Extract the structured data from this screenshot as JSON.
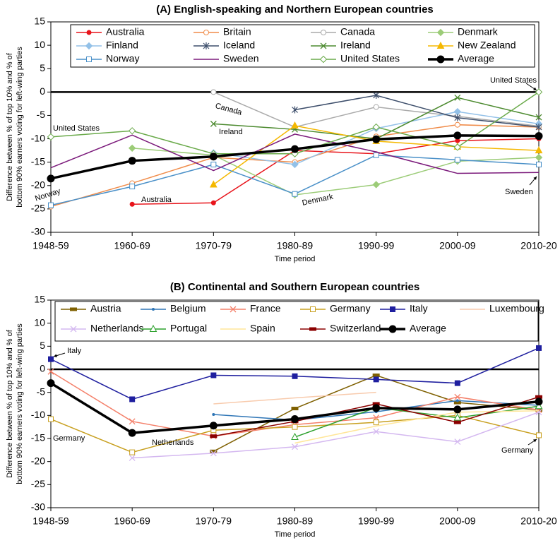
{
  "chart_data": [
    {
      "type": "line",
      "title": "(A)  English-speaking and Northern European countries",
      "xlabel": "Time period",
      "ylabel": [
        "Difference between % of top 10% and % of",
        "bottom 90% earners voting for left-wing parties"
      ],
      "categories": [
        "1948-59",
        "1960-69",
        "1970-79",
        "1980-89",
        "1990-99",
        "2000-09",
        "2010-20"
      ],
      "ylim": [
        -30,
        15
      ],
      "yticks": [
        -30,
        -25,
        -20,
        -15,
        -10,
        -5,
        0,
        5,
        10,
        15
      ],
      "legend": "top",
      "series": [
        {
          "name": "Australia",
          "color": "#e8141b",
          "marker": "circle",
          "values": [
            null,
            -24,
            -23.7,
            -12.5,
            -13.2,
            -10.4,
            -10
          ]
        },
        {
          "name": "Britain",
          "color": "#f08c4a",
          "marker": "circle-open",
          "values": [
            -24.5,
            -19.5,
            -14,
            -15,
            -9.5,
            -7,
            -7.5
          ]
        },
        {
          "name": "Canada",
          "color": "#aaaaaa",
          "marker": "circle-open",
          "values": [
            null,
            null,
            0,
            -7.5,
            -3.2,
            -5.2,
            -7.3
          ]
        },
        {
          "name": "Denmark",
          "color": "#9ccc78",
          "marker": "diamond",
          "values": [
            null,
            -12,
            -13.5,
            -22,
            -19.8,
            -14.8,
            -14
          ]
        },
        {
          "name": "Finland",
          "color": "#93c1e8",
          "marker": "diamond",
          "values": [
            null,
            null,
            -13,
            -15.5,
            -7.8,
            -4.2,
            -6.8
          ]
        },
        {
          "name": "Iceland",
          "color": "#3d4e6b",
          "marker": "star",
          "values": [
            null,
            null,
            null,
            -3.8,
            -0.7,
            -5.5,
            -7.5
          ]
        },
        {
          "name": "Ireland",
          "color": "#4c8a2f",
          "marker": "x",
          "values": [
            null,
            null,
            -6.8,
            -8,
            -10,
            -1.2,
            -5.4
          ]
        },
        {
          "name": "New Zealand",
          "color": "#f5b800",
          "marker": "triangle",
          "values": [
            null,
            null,
            -19.8,
            -7.2,
            -10.5,
            -11.7,
            -12.5
          ]
        },
        {
          "name": "Norway",
          "color": "#4a90c8",
          "marker": "square-open",
          "values": [
            -24.2,
            -20.2,
            -15.5,
            -21.8,
            -13.5,
            -14.5,
            -15.5
          ]
        },
        {
          "name": "Sweden",
          "color": "#7b1a7b",
          "marker": "none",
          "values": [
            -16.2,
            -9.2,
            -16.8,
            -9,
            -12.8,
            -17.4,
            -17.2
          ]
        },
        {
          "name": "United States",
          "color": "#6aaa4a",
          "marker": "diamond-open",
          "values": [
            -9.6,
            -8.3,
            -13.2,
            -13.2,
            -7.5,
            -11.8,
            0
          ]
        },
        {
          "name": "Average",
          "color": "#000000",
          "marker": "circle-big",
          "values": [
            -18.5,
            -14.7,
            -13.8,
            -12.2,
            -10.1,
            -9.3,
            -9.4
          ]
        }
      ],
      "annotations": [
        "United States",
        "Canada",
        "Ireland",
        "United States",
        "Norway",
        "Australia",
        "Denmark",
        "Sweden"
      ]
    },
    {
      "type": "line",
      "title": "(B)  Continental and Southern European countries",
      "xlabel": "Time period",
      "ylabel": [
        "Difference between % of top 10% and % of",
        "bottom 90% earners voting for left-wing parties"
      ],
      "categories": [
        "1948-59",
        "1960-69",
        "1970-79",
        "1980-89",
        "1990-99",
        "2000-09",
        "2010-20"
      ],
      "ylim": [
        -30,
        15
      ],
      "yticks": [
        -30,
        -25,
        -20,
        -15,
        -10,
        -5,
        0,
        5,
        10,
        15
      ],
      "legend": "top",
      "series": [
        {
          "name": "Austria",
          "color": "#7f6000",
          "marker": "dash",
          "values": [
            null,
            null,
            -17.8,
            -8.5,
            -1.3,
            -7.2,
            -8.8
          ]
        },
        {
          "name": "Belgium",
          "color": "#2e75b6",
          "marker": "dot",
          "values": [
            null,
            null,
            -9.8,
            -11,
            -9.2,
            -6.8,
            -7.8
          ]
        },
        {
          "name": "France",
          "color": "#f4806a",
          "marker": "x",
          "values": [
            -0.5,
            -11.3,
            -14.5,
            -12,
            -10.5,
            -6,
            -8.8
          ]
        },
        {
          "name": "Germany",
          "color": "#c8a020",
          "marker": "square-open",
          "values": [
            -10.8,
            -18,
            -13.2,
            -12.5,
            -11.5,
            -10,
            -14.3
          ]
        },
        {
          "name": "Italy",
          "color": "#1f1f9f",
          "marker": "square",
          "values": [
            2.2,
            -6.5,
            -1.3,
            -1.5,
            -2.2,
            -3,
            4.6
          ]
        },
        {
          "name": "Luxembourg",
          "color": "#f8cbad",
          "marker": "none",
          "values": [
            null,
            null,
            -7.5,
            -6.2,
            -5,
            null,
            null
          ]
        },
        {
          "name": "Netherlands",
          "color": "#d4b8f0",
          "marker": "x",
          "values": [
            null,
            -19.2,
            -18.2,
            -16.8,
            -13.5,
            -15.7,
            -9.3
          ]
        },
        {
          "name": "Portugal",
          "color": "#2ca02c",
          "marker": "triangle-open",
          "values": [
            null,
            null,
            null,
            -14.7,
            -8.3,
            -10.5,
            -8
          ]
        },
        {
          "name": "Spain",
          "color": "#ffe699",
          "marker": "none",
          "values": [
            null,
            null,
            null,
            -16,
            -12.3,
            -9.3,
            -9
          ]
        },
        {
          "name": "Switzerland",
          "color": "#8b0000",
          "marker": "dash",
          "values": [
            null,
            null,
            -14.5,
            -11.3,
            -7.5,
            -11.5,
            -6
          ]
        },
        {
          "name": "Average",
          "color": "#000000",
          "marker": "circle-big",
          "values": [
            -3,
            -13.8,
            -12.2,
            -10.8,
            -8.4,
            -8.7,
            -7
          ]
        }
      ],
      "annotations": [
        "Italy",
        "Germany",
        "Netherlands",
        "Germany"
      ]
    }
  ]
}
